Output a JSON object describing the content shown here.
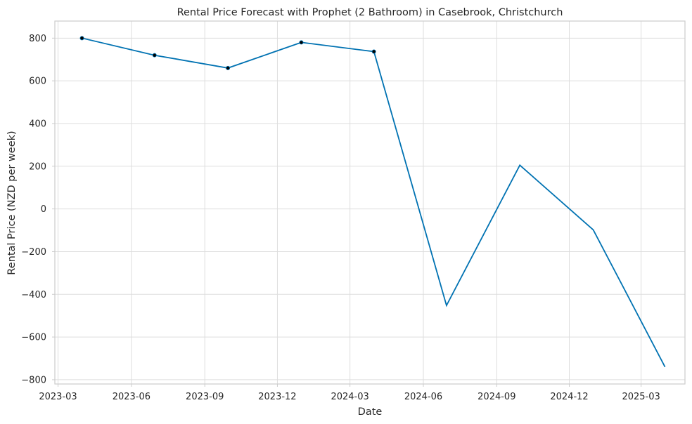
{
  "chart_data": {
    "type": "line",
    "title": "Rental Price Forecast with Prophet (2 Bathroom) in Casebrook, Christchurch",
    "xlabel": "Date",
    "ylabel": "Rental Price (NZD per week)",
    "x_ticks": [
      "2023-03",
      "2023-06",
      "2023-09",
      "2023-12",
      "2024-03",
      "2024-06",
      "2024-09",
      "2024-12",
      "2025-03"
    ],
    "y_ticks": [
      -800,
      -600,
      -400,
      -200,
      0,
      200,
      400,
      600,
      800
    ],
    "ylim": [
      -820,
      880
    ],
    "xlim": [
      "2023-02-25",
      "2025-04-25"
    ],
    "grid": true,
    "series": [
      {
        "x": [
          "2023-03-31",
          "2023-06-30",
          "2023-09-30",
          "2023-12-31",
          "2024-03-31",
          "2024-06-30",
          "2024-09-30",
          "2024-12-31",
          "2025-03-31"
        ],
        "values": [
          800,
          720,
          660,
          780,
          737,
          -452,
          205,
          -98,
          -740
        ]
      }
    ],
    "observed": {
      "x": [
        "2023-03-31",
        "2023-06-30",
        "2023-09-30",
        "2023-12-31",
        "2024-03-31"
      ],
      "values": [
        800,
        720,
        660,
        780,
        737
      ]
    },
    "colors": {
      "line": "#0072b2",
      "points": "#000000",
      "grid": "#dddddd",
      "frame": "#cccccc"
    }
  }
}
